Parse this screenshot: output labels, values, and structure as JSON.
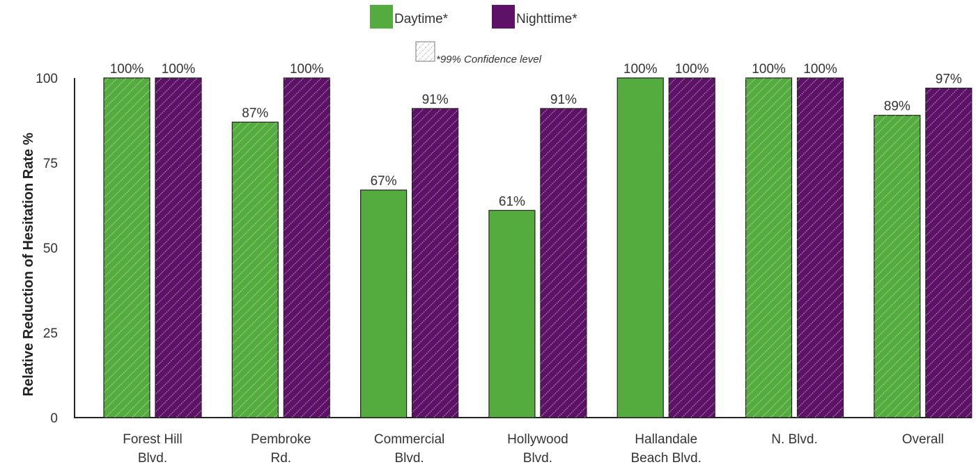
{
  "colors": {
    "daytime": "#55ac3e",
    "nighttime": "#5d1267",
    "hatch": "#ffffff",
    "axis": "#222222"
  },
  "legend": {
    "series": [
      "Daytime*",
      "Nighttime*"
    ],
    "note": "*99% Confidence level"
  },
  "chart_data": {
    "type": "bar",
    "title": "",
    "xlabel": "",
    "ylabel": "Relative Reduction of Hesitation Rate %",
    "ylim": [
      0,
      100
    ],
    "yticks": [
      0,
      25,
      50,
      75,
      100
    ],
    "grid": false,
    "legend_position": "top-center",
    "categories": [
      [
        "Forest Hill",
        "Blvd."
      ],
      [
        "Pembroke",
        "Rd."
      ],
      [
        "Commercial",
        "Blvd."
      ],
      [
        "Hollywood",
        "Blvd."
      ],
      [
        "Hallandale",
        "Beach Blvd."
      ],
      [
        "N. Blvd."
      ],
      [
        "Overall"
      ]
    ],
    "series": [
      {
        "name": "Daytime*",
        "values": [
          100,
          87,
          67,
          61,
          100,
          100,
          89
        ],
        "labels": [
          "100%",
          "87%",
          "67%",
          "61%",
          "100%",
          "100%",
          "89%"
        ],
        "significant": [
          true,
          true,
          false,
          false,
          false,
          true,
          true
        ]
      },
      {
        "name": "Nighttime*",
        "values": [
          100,
          100,
          91,
          91,
          100,
          100,
          97
        ],
        "labels": [
          "100%",
          "100%",
          "91%",
          "91%",
          "100%",
          "100%",
          "97%"
        ],
        "significant": [
          true,
          true,
          true,
          true,
          true,
          true,
          true
        ]
      }
    ]
  }
}
